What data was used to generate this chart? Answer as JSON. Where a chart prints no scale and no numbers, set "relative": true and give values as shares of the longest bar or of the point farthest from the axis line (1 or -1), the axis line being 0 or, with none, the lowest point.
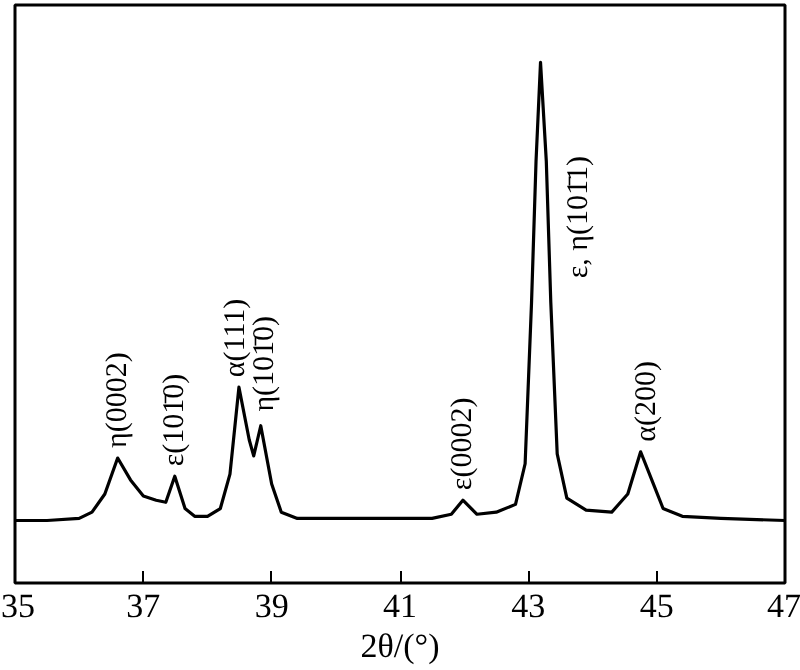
{
  "chart_data": {
    "type": "line",
    "relative": true,
    "xlabel": "2θ/(°)",
    "xlim": [
      35,
      47
    ],
    "xticks": [
      35,
      37,
      39,
      41,
      43,
      45,
      47
    ],
    "grid": false,
    "marker": "none",
    "line_style": "solid",
    "series": [
      {
        "color": "#000000",
        "x": [
          35.0,
          35.5,
          36.0,
          36.2,
          36.4,
          36.6,
          36.8,
          37.0,
          37.2,
          37.35,
          37.49,
          37.65,
          37.8,
          38.0,
          38.2,
          38.35,
          38.49,
          38.65,
          38.72,
          38.83,
          39.0,
          39.15,
          39.4,
          40.0,
          41.0,
          41.5,
          41.8,
          41.98,
          42.2,
          42.5,
          42.8,
          42.95,
          43.05,
          43.12,
          43.19,
          43.28,
          43.35,
          43.45,
          43.6,
          43.9,
          44.3,
          44.55,
          44.75,
          44.95,
          45.1,
          45.4,
          46.0,
          47.0
        ],
        "values": [
          0.12,
          0.12,
          0.124,
          0.136,
          0.171,
          0.24,
          0.198,
          0.167,
          0.159,
          0.155,
          0.205,
          0.143,
          0.128,
          0.128,
          0.143,
          0.209,
          0.376,
          0.275,
          0.244,
          0.302,
          0.19,
          0.136,
          0.124,
          0.124,
          0.124,
          0.124,
          0.132,
          0.159,
          0.132,
          0.136,
          0.151,
          0.229,
          0.539,
          0.81,
          1.0,
          0.81,
          0.539,
          0.248,
          0.163,
          0.14,
          0.136,
          0.171,
          0.252,
          0.19,
          0.143,
          0.128,
          0.124,
          0.12
        ]
      }
    ],
    "annotations": [
      {
        "text": "η(0002)",
        "x": 36.6,
        "y": 0.24
      },
      {
        "text": "ε(101̄0)",
        "x": 37.49,
        "y": 0.205
      },
      {
        "text": "α(111)",
        "x": 38.45,
        "y": 0.376
      },
      {
        "text": "η(101̄0)",
        "x": 38.9,
        "y": 0.31
      },
      {
        "text": "ε(0002)",
        "x": 41.98,
        "y": 0.159
      },
      "ε, η(101̄1)",
      {
        "text": "α(200)",
        "x": 44.85,
        "y": 0.252
      }
    ]
  }
}
